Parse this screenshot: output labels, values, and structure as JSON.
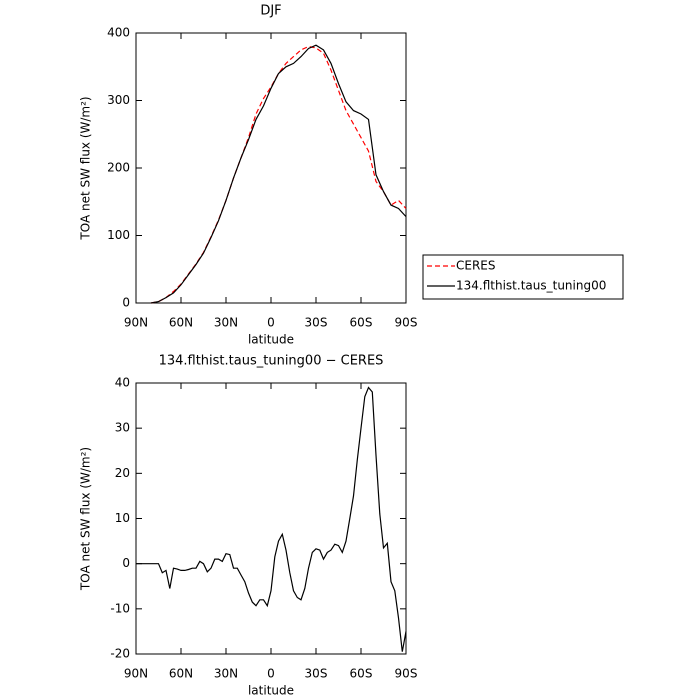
{
  "chart_data": [
    {
      "type": "line",
      "title": "DJF",
      "x_label": "latitude",
      "y_label": "TOA net SW flux (W/m²)",
      "x": [
        80,
        75,
        70,
        65,
        60,
        55,
        50,
        45,
        40,
        35,
        30,
        25,
        20,
        15,
        10,
        5,
        0,
        -5,
        -10,
        -15,
        -20,
        -25,
        -30,
        -35,
        -40,
        -45,
        -50,
        -55,
        -60,
        -65,
        -70,
        -75,
        -80,
        -85,
        -90
      ],
      "series": [
        {
          "name": "CERES",
          "color": "#ff0000",
          "linestyle": "dashed",
          "values": [
            0,
            2,
            8,
            17,
            28,
            43,
            58,
            75,
            98,
            123,
            152,
            185,
            215,
            245,
            280,
            303,
            320,
            340,
            355,
            365,
            375,
            380,
            378,
            370,
            345,
            315,
            285,
            265,
            245,
            225,
            180,
            165,
            145,
            152,
            140
          ]
        },
        {
          "name": "134.flthist.taus_tuning00",
          "color": "#000000",
          "linestyle": "solid",
          "values": [
            0,
            2,
            8,
            15,
            27,
            42,
            57,
            74,
            97,
            122,
            152,
            185,
            215,
            242,
            272,
            292,
            318,
            340,
            350,
            355,
            365,
            377,
            382,
            375,
            355,
            325,
            298,
            285,
            280,
            272,
            190,
            165,
            145,
            140,
            128
          ]
        }
      ],
      "xlim": [
        90,
        -90
      ],
      "xticks": [
        {
          "value": 90,
          "label": "90N"
        },
        {
          "value": 60,
          "label": "60N"
        },
        {
          "value": 30,
          "label": "30N"
        },
        0,
        {
          "value": -30,
          "label": "30S"
        },
        {
          "value": -60,
          "label": "60S"
        },
        {
          "value": -90,
          "label": "90S"
        }
      ],
      "ylim": [
        0,
        400
      ],
      "yticks": [
        0,
        100,
        200,
        300,
        400
      ],
      "legend": "outside right"
    },
    {
      "type": "line",
      "title": "134.flthist.taus_tuning00 − CERES",
      "x_label": "latitude",
      "y_label": "TOA net SW flux (W/m²)",
      "x": [
        90,
        87.5,
        85,
        82.5,
        80,
        77.5,
        75,
        72.5,
        70,
        67.5,
        65,
        62.5,
        60,
        57.5,
        55,
        52.5,
        50,
        47.5,
        45,
        42.5,
        40,
        37.5,
        35,
        32.5,
        30,
        27.5,
        25,
        22.5,
        20,
        17.5,
        15,
        12.5,
        10,
        7.5,
        5,
        2.5,
        0,
        -2.5,
        -5,
        -7.5,
        -10,
        -12.5,
        -15,
        -17.5,
        -20,
        -22.5,
        -25,
        -27.5,
        -30,
        -32.5,
        -35,
        -37.5,
        -40,
        -42.5,
        -45,
        -47.5,
        -50,
        -52.5,
        -55,
        -57.5,
        -60,
        -62.5,
        -65,
        -67.5,
        -70,
        -72.5,
        -75,
        -77.5,
        -80,
        -82.5,
        -85,
        -87.5,
        -90
      ],
      "series": [
        {
          "name": "134.flthist.taus_tuning00 − CERES",
          "color": "#000000",
          "linestyle": "solid",
          "values": [
            0,
            0,
            0,
            0,
            0,
            0,
            0,
            -2,
            -1.5,
            -5.5,
            -1,
            -1.2,
            -1.5,
            -1.5,
            -1.3,
            -1,
            -1,
            0.5,
            0,
            -1.8,
            -1,
            1,
            1,
            0.5,
            2.2,
            2,
            -1,
            -1,
            -2.5,
            -4,
            -6.5,
            -8.5,
            -9.3,
            -8,
            -8,
            -9.3,
            -6,
            1.5,
            5,
            6.5,
            3,
            -2,
            -6,
            -7.5,
            -8,
            -5.5,
            -1,
            2.5,
            3.3,
            3,
            1,
            2.5,
            3,
            4.3,
            4,
            2.5,
            5,
            10,
            15,
            23,
            30,
            37,
            39,
            38,
            24,
            11,
            3.5,
            4.5,
            -4,
            -6,
            -12,
            -19.5,
            -15
          ]
        }
      ],
      "xlim": [
        90,
        -90
      ],
      "xticks": [
        {
          "value": 90,
          "label": "90N"
        },
        {
          "value": 60,
          "label": "60N"
        },
        {
          "value": 30,
          "label": "30N"
        },
        0,
        {
          "value": -30,
          "label": "30S"
        },
        {
          "value": -60,
          "label": "60S"
        },
        {
          "value": -90,
          "label": "90S"
        }
      ],
      "ylim": [
        -20,
        40
      ],
      "yticks": [
        -20,
        -10,
        0,
        10,
        20,
        30,
        40
      ]
    }
  ]
}
